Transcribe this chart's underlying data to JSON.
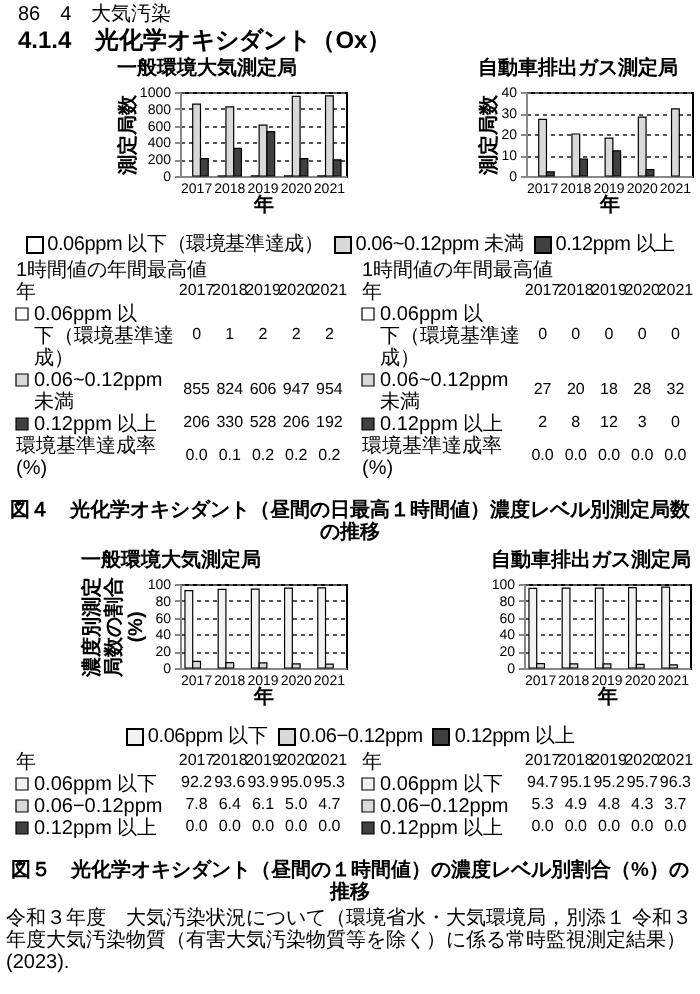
{
  "chart_data": [
    {
      "type": "bar",
      "title": "一般環境大気測定局",
      "xlabel": "年",
      "ylabel": "測定局数",
      "categories": [
        "2017",
        "2018",
        "2019",
        "2020",
        "2021"
      ],
      "ylim": [
        0,
        1000
      ],
      "yticks": [
        0,
        200,
        400,
        600,
        800,
        1000
      ],
      "grid": "y",
      "legend": "bottom",
      "data_labels": true,
      "series": [
        {
          "name": "0.06ppm 以下（環境基準達成）",
          "color": "#ffffff",
          "values": [
            0,
            1,
            2,
            2,
            2
          ]
        },
        {
          "name": "0.06~0.12ppm 未満",
          "color": "#d9d9d9",
          "values": [
            855,
            824,
            606,
            947,
            954
          ]
        },
        {
          "name": "0.12ppm 以上",
          "color": "#404040",
          "values": [
            206,
            330,
            528,
            206,
            192
          ]
        }
      ],
      "annotations": [
        "86　4　大気汚染",
        "4.1.4　光化学オキシダント（Ox）",
        "1時間値の年間最高値",
        "環境基準達成率(%)",
        "0.0",
        "0.1",
        "0.2",
        "0.2",
        "0.2",
        "図４　光化学オキシダント（昼間の日最高１時間値）濃度レベル別測定局数の推移"
      ]
    },
    {
      "type": "bar",
      "title": "自動車排出ガス測定局",
      "xlabel": "年",
      "ylabel": "測定局数",
      "categories": [
        "2017",
        "2018",
        "2019",
        "2020",
        "2021"
      ],
      "ylim": [
        0,
        40
      ],
      "yticks": [
        0,
        10,
        20,
        30,
        40
      ],
      "grid": "y",
      "legend": "bottom",
      "data_labels": true,
      "series": [
        {
          "name": "0.06ppm 以下（環境基準達成）",
          "color": "#ffffff",
          "values": [
            0,
            0,
            0,
            0,
            0
          ]
        },
        {
          "name": "0.06~0.12ppm 未満",
          "color": "#d9d9d9",
          "values": [
            27,
            20,
            18,
            28,
            32
          ]
        },
        {
          "name": "0.12ppm 以上",
          "color": "#404040",
          "values": [
            2,
            8,
            12,
            3,
            0
          ]
        }
      ],
      "annotations": [
        "1時間値の年間最高値",
        "環境基準達成率(%)",
        "0.0",
        "0.0",
        "0.0",
        "0.0",
        "0.0"
      ]
    },
    {
      "type": "bar",
      "title": "一般環境大気測定局",
      "xlabel": "年",
      "ylabel": "濃度別測定局数の割合(%)",
      "categories": [
        "2017",
        "2018",
        "2019",
        "2020",
        "2021"
      ],
      "ylim": [
        0,
        100
      ],
      "yticks": [
        0,
        20,
        40,
        60,
        80,
        100
      ],
      "grid": "y",
      "legend": "bottom",
      "series": [
        {
          "name": "0.06ppm 以下",
          "color": "#f2f2f2",
          "values": [
            92.2,
            93.6,
            93.9,
            95.0,
            95.3
          ],
          "value_labels": [
            "92.2",
            "93.6",
            "93.9",
            "95.0",
            "95.3"
          ]
        },
        {
          "name": "0.06−0.12ppm",
          "color": "#d9d9d9",
          "values": [
            7.8,
            6.4,
            6.1,
            5.0,
            4.7
          ],
          "value_labels": [
            "7.8",
            "6.4",
            "6.1",
            "5.0",
            "4.7"
          ]
        },
        {
          "name": "0.12ppm 以上",
          "color": "#404040",
          "values": [
            0,
            0,
            0,
            0,
            0
          ],
          "value_labels": [
            "0.0",
            "0.0",
            "0.0",
            "0.0",
            "0.0"
          ]
        }
      ],
      "annotations": [
        "年"
      ]
    },
    {
      "type": "bar",
      "title": "自動車排出ガス測定局",
      "xlabel": "年",
      "categories": [
        "2017",
        "2018",
        "2019",
        "2020",
        "2021"
      ],
      "ylim": [
        0,
        100
      ],
      "yticks": [
        0,
        20,
        40,
        60,
        80,
        100
      ],
      "grid": "y",
      "legend": "bottom",
      "series": [
        {
          "name": "0.06ppm 以下",
          "color": "#f2f2f2",
          "values": [
            94.7,
            95.1,
            95.2,
            95.7,
            96.3
          ],
          "value_labels": [
            "94.7",
            "95.1",
            "95.2",
            "95.7",
            "96.3"
          ]
        },
        {
          "name": "0.06−0.12ppm",
          "color": "#d9d9d9",
          "values": [
            5.3,
            4.9,
            4.8,
            4.3,
            3.7
          ],
          "value_labels": [
            "5.3",
            "4.9",
            "4.8",
            "4.3",
            "3.7"
          ]
        },
        {
          "name": "0.12ppm 以上",
          "color": "#404040",
          "values": [
            0,
            0,
            0,
            0,
            0
          ],
          "value_labels": [
            "0.0",
            "0.0",
            "0.0",
            "0.0",
            "0.0"
          ]
        }
      ],
      "annotations": [
        "年",
        "図５　光化学オキシダント（昼間の１時間値）の濃度レベル別割合（%）の推移",
        "令和３年度　大気汚染状況について（環境省水・大気環境局，別添１ 令和３年度大気汚染物質（有害大気汚染物質等を除く）に係る常時監視測定結果）(2023)."
      ]
    }
  ]
}
